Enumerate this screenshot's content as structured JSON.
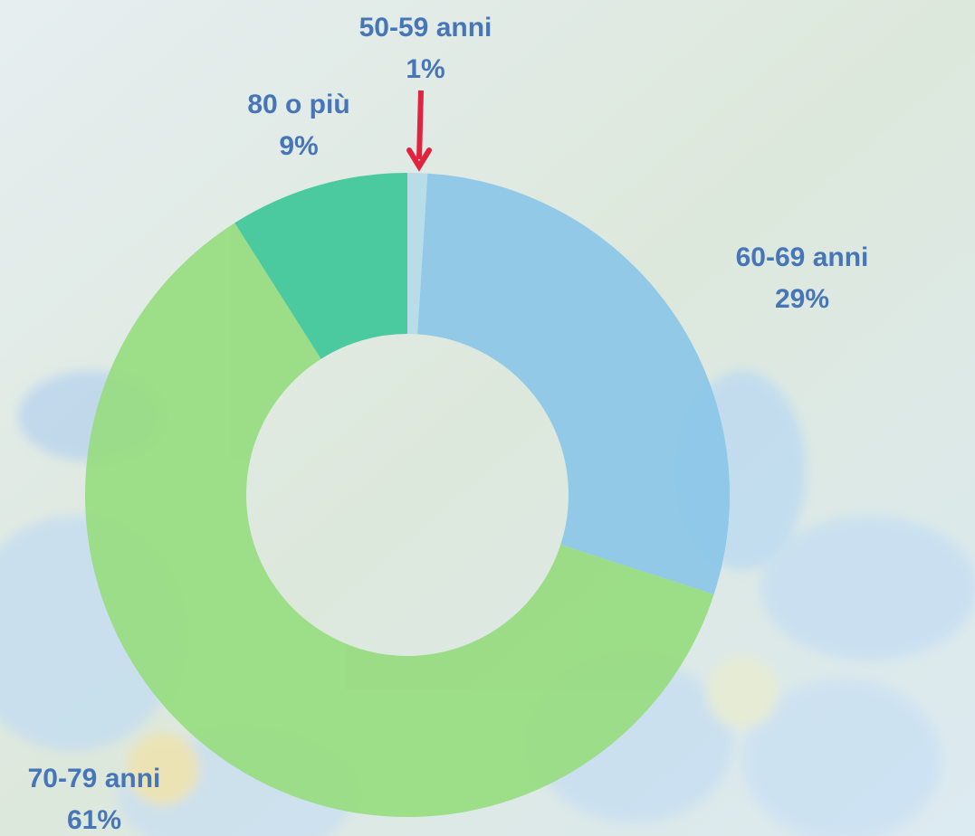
{
  "chart_data": {
    "type": "donut",
    "categories": [
      "50-59 anni",
      "60-69 anni",
      "70-79 anni",
      "80 o più"
    ],
    "values": [
      1,
      29,
      61,
      9
    ],
    "value_labels": [
      "1%",
      "29%",
      "61%",
      "9%"
    ],
    "colors": [
      "#b5dcea",
      "#8bc7e8",
      "#97dc80",
      "#3fc79a"
    ]
  }
}
